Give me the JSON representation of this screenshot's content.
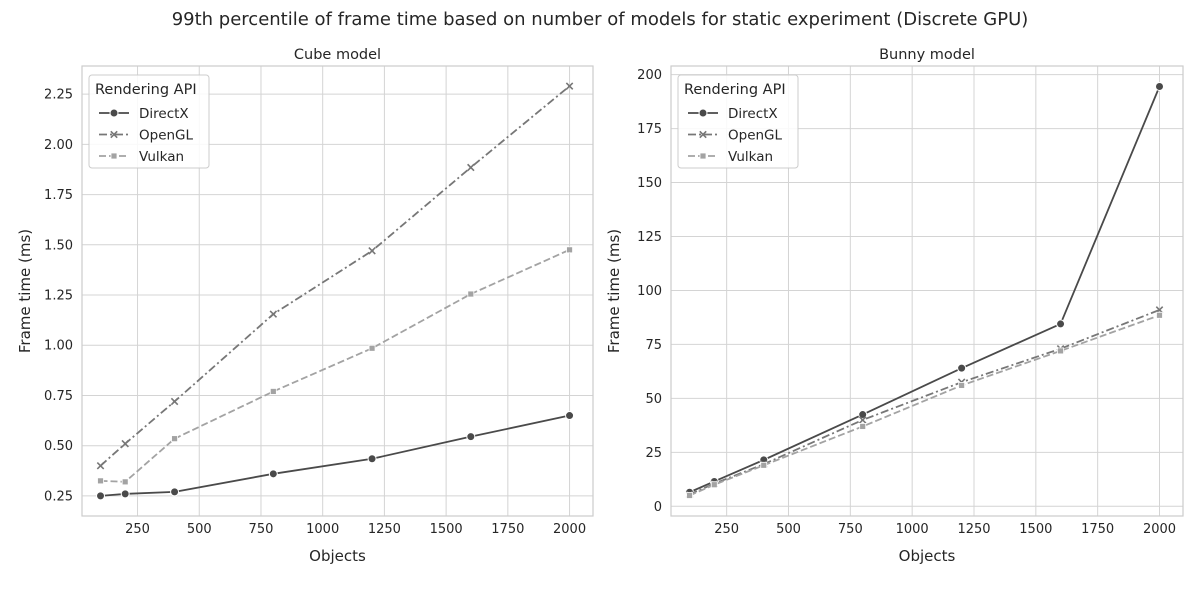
{
  "figure": {
    "title": "99th percentile of frame time based on number of models for static experiment (Discrete GPU)"
  },
  "chart_data": [
    {
      "type": "line",
      "title": "Cube model",
      "xlabel": "Objects",
      "ylabel": "Frame time (ms)",
      "xlim": [
        25,
        2095
      ],
      "ylim": [
        0.15,
        2.39
      ],
      "xticks": [
        250,
        500,
        750,
        1000,
        1250,
        1500,
        1750,
        2000
      ],
      "xtick_labels": [
        "250",
        "500",
        "750",
        "1000",
        "1250",
        "1500",
        "1750",
        "2000"
      ],
      "yticks": [
        0.25,
        0.5,
        0.75,
        1.0,
        1.25,
        1.5,
        1.75,
        2.0,
        2.25
      ],
      "ytick_labels": [
        "0.25",
        "0.50",
        "0.75",
        "1.00",
        "1.25",
        "1.50",
        "1.75",
        "2.00",
        "2.25"
      ],
      "grid": true,
      "legend": {
        "title": "Rendering API",
        "placement": "top-left"
      },
      "x": [
        100,
        200,
        400,
        800,
        1200,
        1600,
        2000
      ],
      "series": [
        {
          "name": "DirectX",
          "values": [
            0.25,
            0.26,
            0.27,
            0.36,
            0.435,
            0.545,
            0.65
          ],
          "color": "#4a4a4a",
          "marker": "circle",
          "dash": "solid"
        },
        {
          "name": "OpenGL",
          "values": [
            0.4,
            0.51,
            0.72,
            1.155,
            1.47,
            1.885,
            2.29
          ],
          "color": "#777777",
          "marker": "x",
          "dash": "dashdot"
        },
        {
          "name": "Vulkan",
          "values": [
            0.325,
            0.32,
            0.535,
            0.77,
            0.985,
            1.255,
            1.475
          ],
          "color": "#a3a3a3",
          "marker": "square",
          "dash": "dashed"
        }
      ]
    },
    {
      "type": "line",
      "title": "Bunny model",
      "xlabel": "Objects",
      "ylabel": "Frame time (ms)",
      "xlim": [
        25,
        2095
      ],
      "ylim": [
        -4.5,
        204
      ],
      "xticks": [
        250,
        500,
        750,
        1000,
        1250,
        1500,
        1750,
        2000
      ],
      "xtick_labels": [
        "250",
        "500",
        "750",
        "1000",
        "1250",
        "1500",
        "1750",
        "2000"
      ],
      "yticks": [
        0,
        25,
        50,
        75,
        100,
        125,
        150,
        175,
        200
      ],
      "ytick_labels": [
        "0",
        "25",
        "50",
        "75",
        "100",
        "125",
        "150",
        "175",
        "200"
      ],
      "grid": true,
      "legend": {
        "title": "Rendering API",
        "placement": "top-left"
      },
      "x": [
        100,
        200,
        400,
        800,
        1200,
        1600,
        2000
      ],
      "series": [
        {
          "name": "DirectX",
          "values": [
            6.5,
            11.5,
            21.5,
            42.5,
            64,
            84.5,
            194.5
          ],
          "color": "#4a4a4a",
          "marker": "circle",
          "dash": "solid"
        },
        {
          "name": "OpenGL",
          "values": [
            5.5,
            10.5,
            19.5,
            40,
            57.5,
            73,
            91
          ],
          "color": "#777777",
          "marker": "x",
          "dash": "dashdot"
        },
        {
          "name": "Vulkan",
          "values": [
            5,
            10,
            19,
            37,
            56,
            72,
            88.5
          ],
          "color": "#a3a3a3",
          "marker": "square",
          "dash": "dashed"
        }
      ]
    }
  ]
}
